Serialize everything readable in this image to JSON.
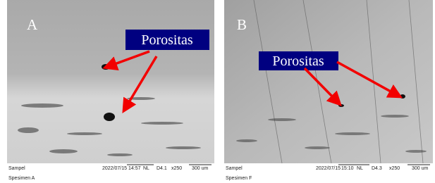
{
  "panels": [
    {
      "letter": "A",
      "callout": "Porositas",
      "footer": {
        "sample": "Sampel",
        "date": "2022/07/15",
        "time": "14:57",
        "mode": "NL",
        "detector": "D4.1",
        "magnification": "x250",
        "scale": "300 um",
        "specimen": "Spesimen A"
      }
    },
    {
      "letter": "B",
      "callout": "Porositas",
      "footer": {
        "sample": "Sampel",
        "date": "2022/07/15",
        "time": "15:10",
        "mode": "NL",
        "detector": "D4.3",
        "magnification": "x250",
        "scale": "300 um",
        "specimen": "Spesimen F"
      }
    }
  ]
}
